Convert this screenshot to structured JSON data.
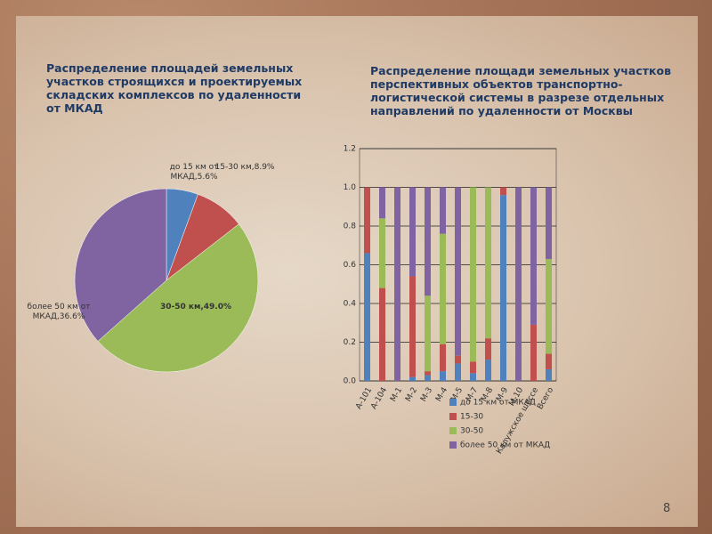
{
  "chart_data": [
    {
      "type": "pie",
      "title": "Распределение площадей земельных участков строящихся и проектируемых складских комплексов по удаленности от МКАД",
      "values": [
        5.6,
        8.9,
        49.0,
        36.6
      ],
      "value_labels": [
        "до 15 км от МКАД,5.6%",
        "15-30 км,8.9%",
        "30-50 км,49.0%",
        "более 50 км от МКАД,36.6%"
      ],
      "colors": [
        "#4f81bd",
        "#c0504d",
        "#9bbb59",
        "#8064a2"
      ]
    },
    {
      "type": "bar",
      "stacked": true,
      "title": "Распределение площади земельных участков перспективных объектов транспортно-логистической системы в разрезе отдельных направлений по удаленности от Москвы",
      "categories": [
        "А-101",
        "А-104",
        "М-1",
        "М-2",
        "М-3",
        "М-4",
        "М-5",
        "М-7",
        "М-8",
        "М-9",
        "М-10",
        "Калужское шоссе",
        "Всего"
      ],
      "series": [
        {
          "name": "до 15 км от МКАД",
          "color": "#4f81bd",
          "values": [
            0.66,
            0,
            0,
            0.02,
            0.03,
            0.05,
            0.09,
            0.04,
            0.11,
            0.96,
            0,
            0,
            0.06
          ]
        },
        {
          "name": "15-30",
          "color": "#c0504d",
          "values": [
            0.34,
            0.48,
            0,
            0.52,
            0.02,
            0.14,
            0.04,
            0.06,
            0.11,
            0.04,
            0,
            0.29,
            0.08
          ]
        },
        {
          "name": "30-50",
          "color": "#9bbb59",
          "values": [
            0,
            0.36,
            0,
            0,
            0.39,
            0.57,
            0,
            0.9,
            0.78,
            0,
            0,
            0,
            0.49
          ]
        },
        {
          "name": "более 50 км от МКАД",
          "color": "#8064a2",
          "values": [
            0,
            0.16,
            1.0,
            0.46,
            0.56,
            0.24,
            0.87,
            0,
            0,
            0,
            1.0,
            0.71,
            0.37
          ]
        }
      ],
      "ylim": [
        0,
        1.2
      ],
      "yticks": [
        {
          "value": 0,
          "label": "0.0"
        },
        0.2,
        0.4,
        0.6,
        0.8,
        {
          "value": 1,
          "label": "1.0"
        },
        1.2
      ],
      "grid": true
    }
  ],
  "slide": {
    "page_number": "8"
  }
}
